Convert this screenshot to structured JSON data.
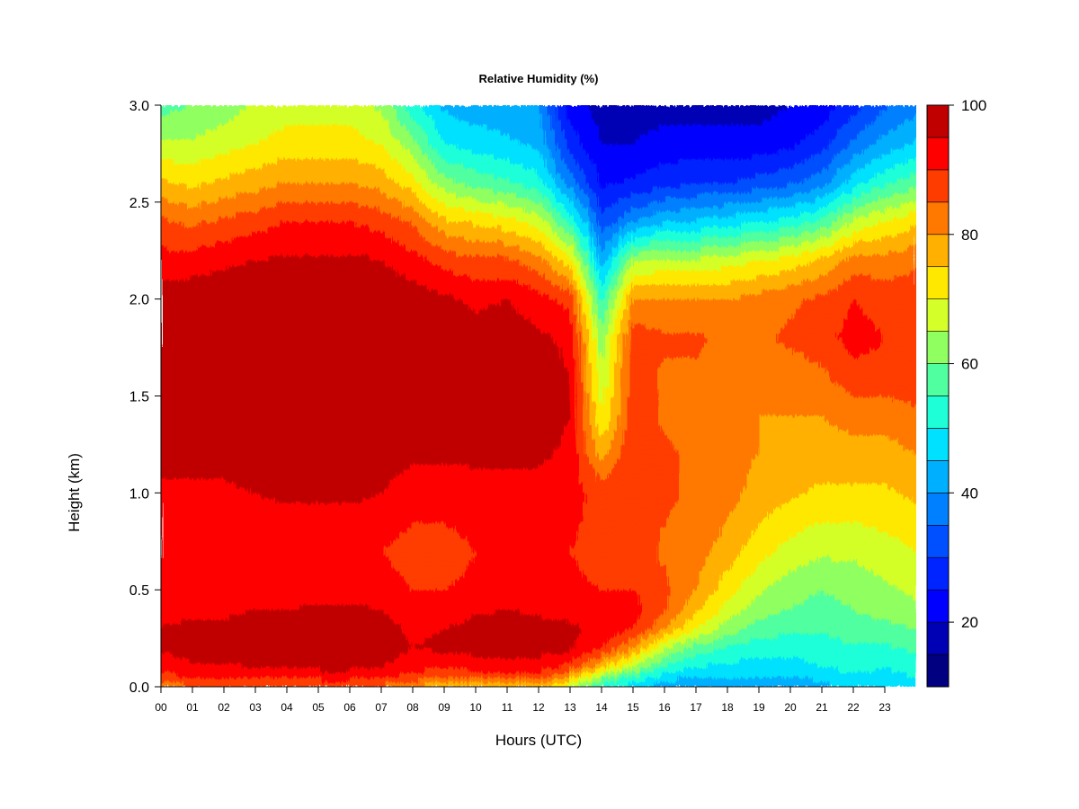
{
  "chart_data": {
    "type": "heatmap",
    "title": "Relative Humidity (%)",
    "xlabel": "Hours (UTC)",
    "ylabel": "Height (km)",
    "xlim": [
      0,
      24
    ],
    "ylim": [
      0.0,
      3.0
    ],
    "x_ticks": [
      "00",
      "01",
      "02",
      "03",
      "04",
      "05",
      "06",
      "07",
      "08",
      "09",
      "10",
      "11",
      "12",
      "13",
      "14",
      "15",
      "16",
      "17",
      "18",
      "19",
      "20",
      "21",
      "22",
      "23"
    ],
    "y_ticks": [
      "0.0",
      "0.5",
      "1.0",
      "1.5",
      "2.0",
      "2.5",
      "3.0"
    ],
    "colorbar": {
      "min": 10,
      "max": 100,
      "ticks": [
        "20",
        "40",
        "60",
        "80",
        "100"
      ],
      "levels": [
        10,
        15,
        20,
        25,
        30,
        35,
        40,
        45,
        50,
        55,
        60,
        65,
        70,
        75,
        80,
        85,
        90,
        95,
        100
      ],
      "colors": [
        "#000080",
        "#0000b4",
        "#0000ff",
        "#0024ff",
        "#0050ff",
        "#0080ff",
        "#00b0ff",
        "#00e0ff",
        "#1effd8",
        "#50ffa0",
        "#90ff60",
        "#d4ff28",
        "#ffe800",
        "#ffb000",
        "#ff7800",
        "#ff3c00",
        "#ff0000",
        "#c00000",
        "#800000"
      ]
    },
    "grid_heights_km": [
      0.0,
      0.05,
      0.1,
      0.2,
      0.3,
      0.4,
      0.5,
      0.7,
      1.0,
      1.2,
      1.4,
      1.6,
      1.8,
      2.0,
      2.2,
      2.4,
      2.6,
      2.8,
      3.0
    ],
    "grid_hours": [
      0,
      1,
      2,
      3,
      4,
      5,
      6,
      7,
      8,
      9,
      10,
      11,
      12,
      13,
      14,
      15,
      16,
      17,
      18,
      19,
      20,
      21,
      22,
      23,
      24
    ],
    "values_by_hour": [
      [
        82,
        88,
        92,
        96,
        95,
        94,
        92,
        90,
        94,
        97,
        98,
        99,
        99,
        98,
        92,
        86,
        76,
        66,
        58
      ],
      [
        84,
        90,
        94,
        97,
        96,
        94,
        92,
        90,
        94,
        97,
        99,
        99,
        99,
        99,
        92,
        84,
        74,
        66,
        60
      ],
      [
        84,
        90,
        94,
        97,
        96,
        94,
        92,
        90,
        94,
        97,
        99,
        99,
        99,
        99,
        94,
        86,
        76,
        68,
        62
      ],
      [
        84,
        90,
        95,
        98,
        97,
        95,
        92,
        91,
        95,
        98,
        99,
        99,
        99,
        99,
        95,
        88,
        78,
        70,
        66
      ],
      [
        84,
        90,
        95,
        98,
        97,
        95,
        92,
        91,
        96,
        98,
        99,
        99,
        99,
        99,
        96,
        90,
        80,
        72,
        68
      ],
      [
        84,
        92,
        96,
        99,
        98,
        96,
        93,
        91,
        96,
        98,
        99,
        99,
        99,
        99,
        96,
        90,
        80,
        72,
        68
      ],
      [
        84,
        92,
        96,
        99,
        98,
        96,
        93,
        91,
        96,
        98,
        99,
        99,
        99,
        99,
        96,
        90,
        80,
        72,
        68
      ],
      [
        84,
        90,
        95,
        98,
        97,
        95,
        92,
        90,
        95,
        98,
        99,
        99,
        99,
        99,
        95,
        88,
        78,
        70,
        64
      ],
      [
        80,
        88,
        92,
        95,
        94,
        92,
        90,
        88,
        92,
        96,
        98,
        99,
        99,
        98,
        92,
        84,
        72,
        62,
        52
      ],
      [
        74,
        84,
        90,
        96,
        95,
        92,
        90,
        88,
        92,
        96,
        97,
        98,
        98,
        96,
        88,
        76,
        62,
        50,
        44
      ],
      [
        72,
        86,
        92,
        97,
        97,
        94,
        91,
        90,
        93,
        96,
        97,
        97,
        97,
        94,
        86,
        74,
        58,
        48,
        42
      ],
      [
        72,
        86,
        92,
        98,
        98,
        95,
        92,
        90,
        93,
        96,
        97,
        98,
        98,
        95,
        86,
        72,
        56,
        46,
        42
      ],
      [
        76,
        86,
        92,
        97,
        97,
        94,
        92,
        90,
        93,
        96,
        97,
        97,
        96,
        92,
        82,
        68,
        52,
        44,
        40
      ],
      [
        66,
        78,
        88,
        96,
        96,
        93,
        91,
        90,
        92,
        94,
        95,
        95,
        94,
        88,
        72,
        54,
        38,
        28,
        22
      ],
      [
        54,
        62,
        76,
        90,
        94,
        92,
        90,
        88,
        88,
        78,
        70,
        66,
        62,
        54,
        42,
        32,
        24,
        20,
        18
      ],
      [
        46,
        54,
        64,
        80,
        90,
        92,
        90,
        88,
        90,
        90,
        88,
        88,
        88,
        80,
        64,
        40,
        26,
        20,
        18
      ],
      [
        42,
        48,
        54,
        66,
        80,
        86,
        86,
        84,
        86,
        86,
        84,
        84,
        86,
        80,
        66,
        44,
        28,
        22,
        18
      ],
      [
        40,
        44,
        50,
        58,
        70,
        76,
        80,
        82,
        84,
        84,
        82,
        84,
        86,
        80,
        66,
        46,
        30,
        22,
        18
      ],
      [
        40,
        44,
        48,
        54,
        62,
        68,
        72,
        78,
        82,
        82,
        80,
        82,
        84,
        80,
        68,
        48,
        30,
        22,
        18
      ],
      [
        40,
        44,
        48,
        52,
        58,
        62,
        66,
        72,
        78,
        80,
        80,
        82,
        84,
        82,
        70,
        50,
        32,
        22,
        18
      ],
      [
        42,
        44,
        48,
        52,
        56,
        60,
        62,
        68,
        76,
        78,
        80,
        82,
        86,
        84,
        72,
        52,
        34,
        24,
        20
      ],
      [
        44,
        46,
        50,
        52,
        56,
        58,
        60,
        66,
        74,
        78,
        80,
        84,
        88,
        86,
        76,
        56,
        38,
        28,
        22
      ],
      [
        46,
        48,
        52,
        54,
        58,
        60,
        62,
        66,
        74,
        78,
        82,
        88,
        92,
        90,
        82,
        66,
        48,
        36,
        28
      ],
      [
        46,
        48,
        50,
        54,
        58,
        62,
        64,
        68,
        74,
        78,
        82,
        88,
        90,
        88,
        82,
        70,
        54,
        42,
        34
      ],
      [
        48,
        50,
        52,
        56,
        60,
        64,
        66,
        70,
        76,
        80,
        84,
        88,
        90,
        88,
        84,
        74,
        58,
        46,
        38
      ]
    ]
  }
}
